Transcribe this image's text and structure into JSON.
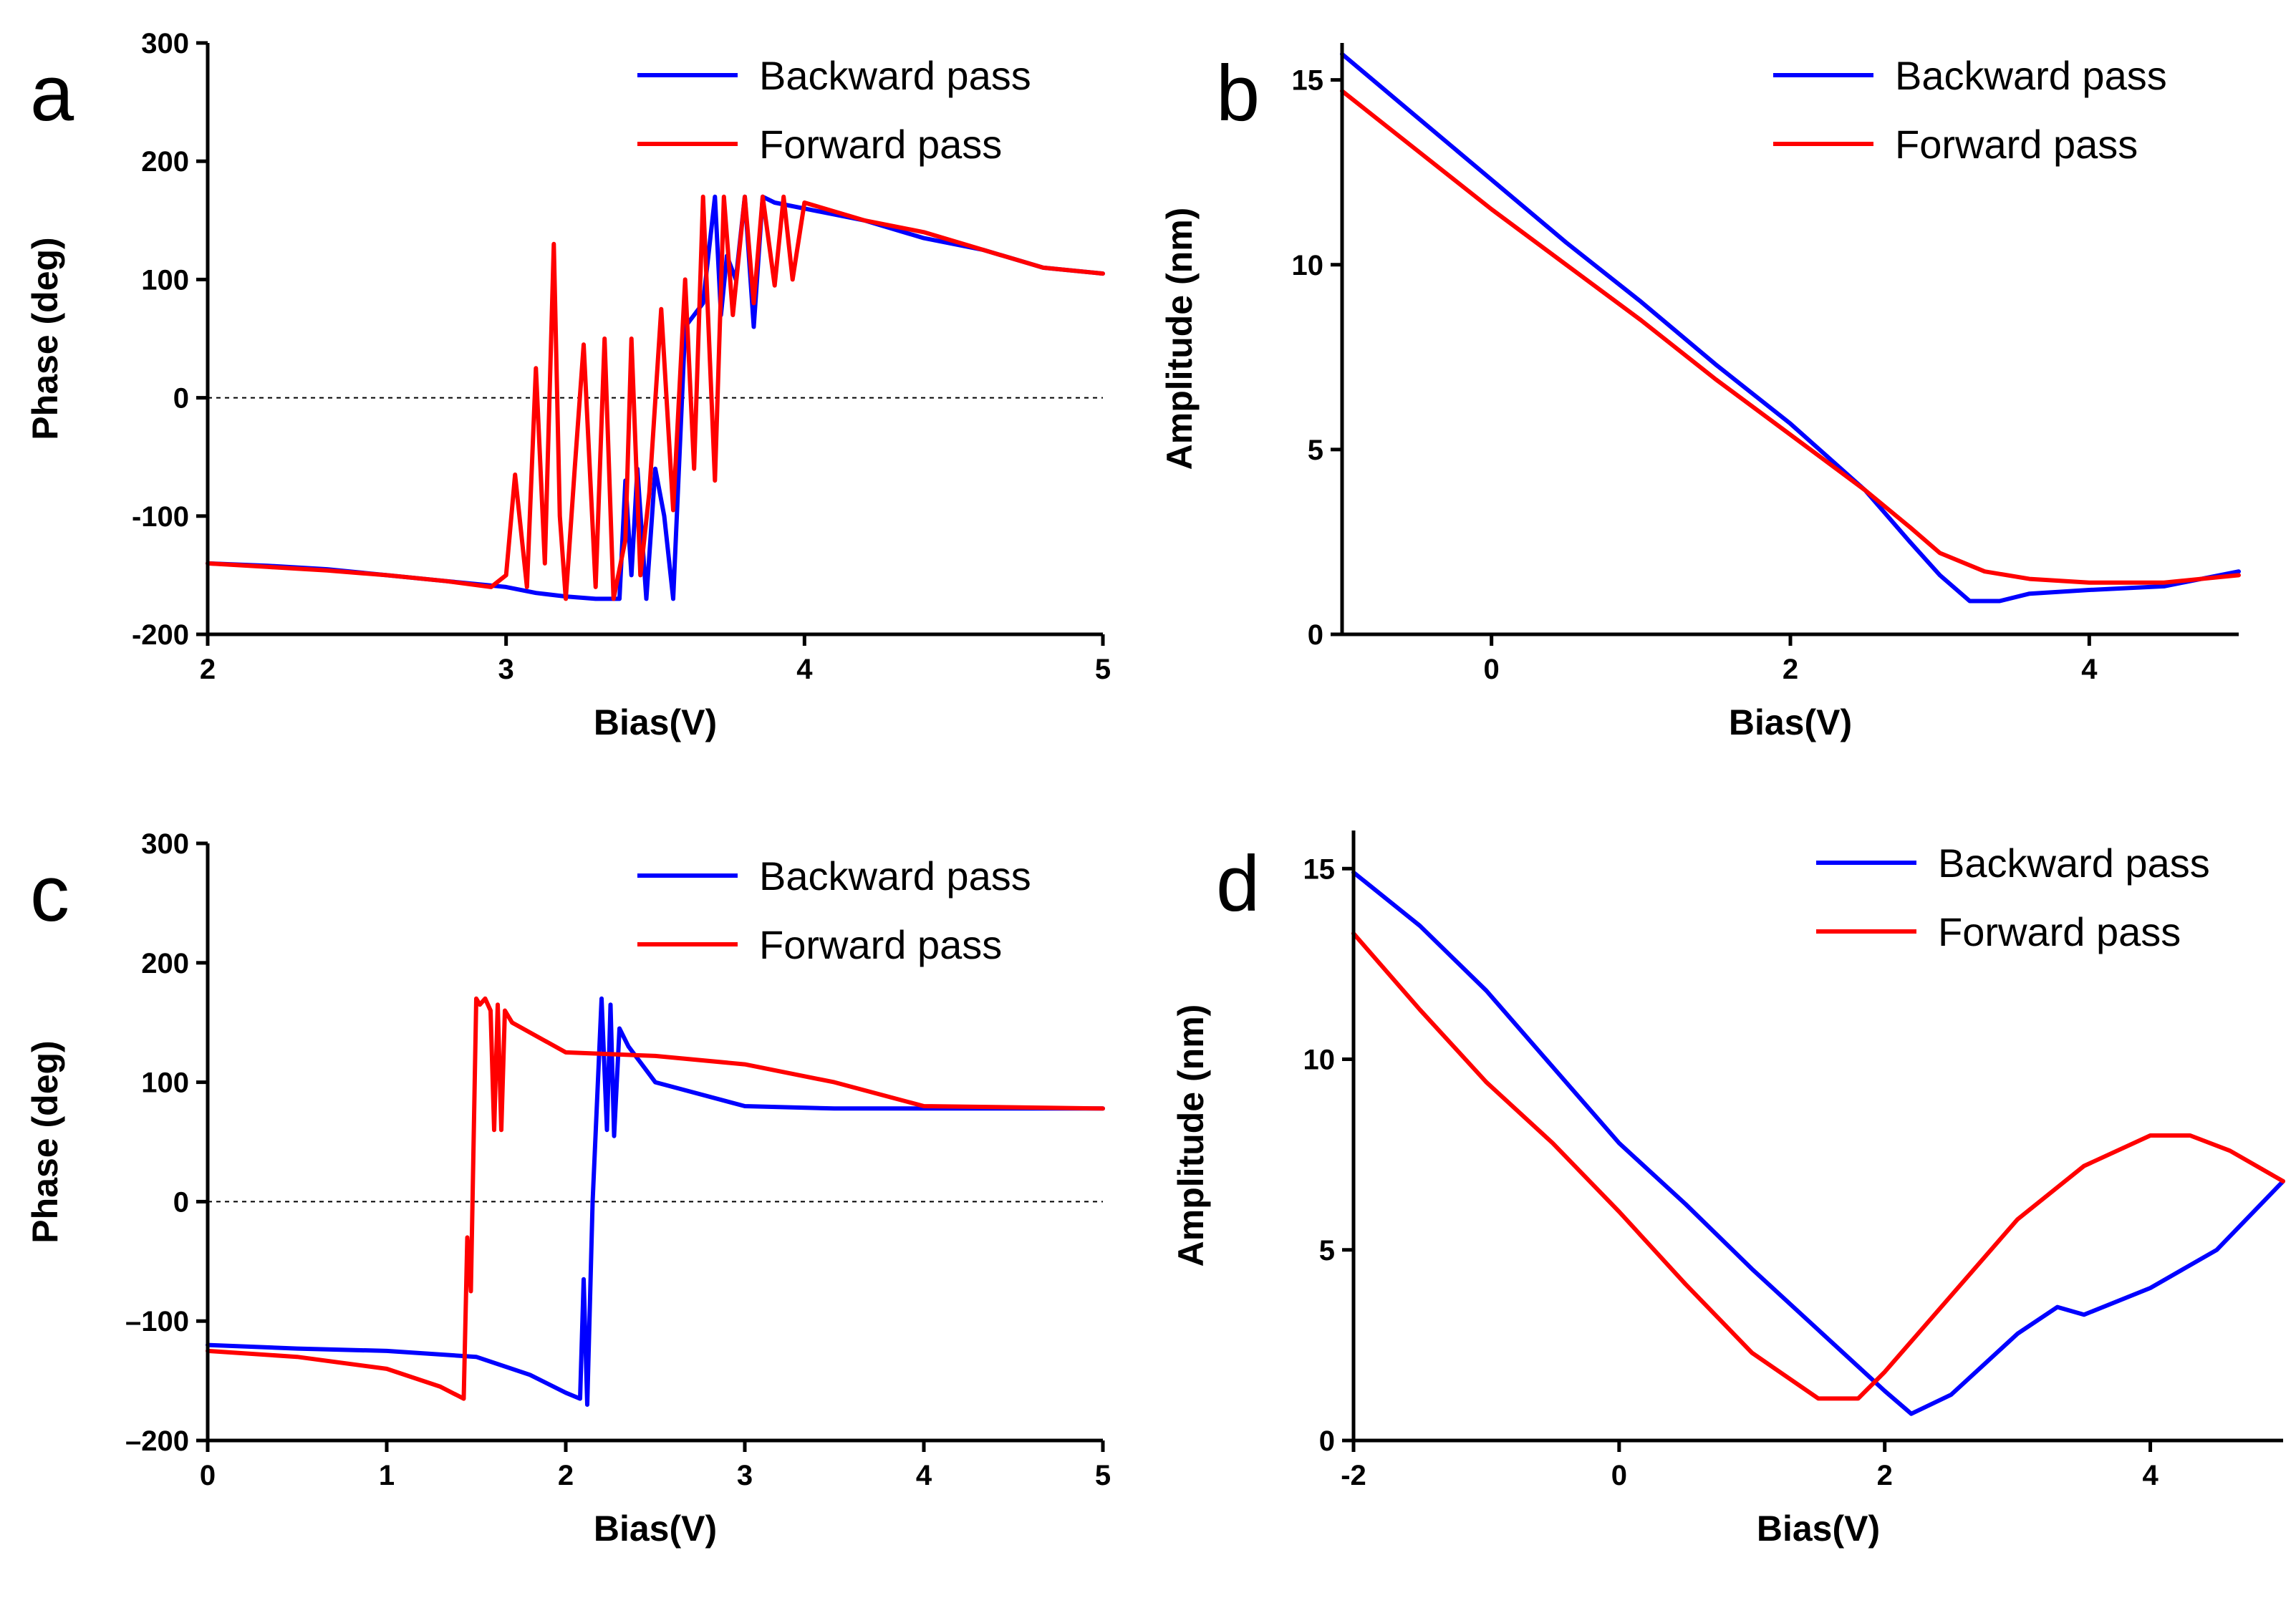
{
  "chart_data": [
    {
      "panel": "a",
      "type": "line",
      "xlabel": "Bias(V)",
      "ylabel": "Phase (deg)",
      "xlim": [
        2,
        5
      ],
      "ylim": [
        -200,
        300
      ],
      "xticks": [
        "2",
        "3",
        "4",
        "5"
      ],
      "yticks": [
        "-200",
        "-100",
        "0",
        "100",
        "200",
        "300"
      ],
      "zero_line": true,
      "legend_position": "top-right",
      "series": [
        {
          "name": "Backward pass",
          "color": "#0000ff",
          "x": [
            2.0,
            2.2,
            2.4,
            2.6,
            2.8,
            3.0,
            3.1,
            3.2,
            3.3,
            3.38,
            3.4,
            3.42,
            3.44,
            3.47,
            3.5,
            3.53,
            3.56,
            3.6,
            3.63,
            3.66,
            3.7,
            3.72,
            3.74,
            3.77,
            3.8,
            3.83,
            3.86,
            3.9,
            4.0,
            4.2,
            4.4,
            4.6,
            4.8,
            5.0
          ],
          "y": [
            -140,
            -142,
            -145,
            -150,
            -155,
            -160,
            -165,
            -168,
            -170,
            -170,
            -70,
            -150,
            -60,
            -170,
            -60,
            -100,
            -170,
            60,
            70,
            80,
            170,
            70,
            120,
            100,
            170,
            60,
            170,
            165,
            160,
            150,
            135,
            125,
            110,
            105
          ]
        },
        {
          "name": "Forward pass",
          "color": "#ff0000",
          "x": [
            2.0,
            2.2,
            2.4,
            2.6,
            2.8,
            2.95,
            3.0,
            3.03,
            3.07,
            3.1,
            3.13,
            3.16,
            3.18,
            3.2,
            3.23,
            3.26,
            3.3,
            3.33,
            3.36,
            3.4,
            3.42,
            3.45,
            3.48,
            3.52,
            3.56,
            3.6,
            3.63,
            3.66,
            3.7,
            3.73,
            3.76,
            3.8,
            3.83,
            3.86,
            3.9,
            3.93,
            3.96,
            4.0,
            4.2,
            4.4,
            4.6,
            4.8,
            5.0
          ],
          "y": [
            -140,
            -143,
            -146,
            -150,
            -155,
            -160,
            -150,
            -65,
            -160,
            25,
            -140,
            130,
            -100,
            -170,
            -60,
            45,
            -160,
            50,
            -170,
            -120,
            50,
            -150,
            -80,
            75,
            -95,
            100,
            -60,
            170,
            -70,
            170,
            70,
            170,
            80,
            170,
            95,
            170,
            100,
            165,
            150,
            140,
            125,
            110,
            105
          ]
        }
      ]
    },
    {
      "panel": "b",
      "type": "line",
      "xlabel": "Bias(V)",
      "ylabel": "Amplitude (nm)",
      "xlim": [
        -1,
        5
      ],
      "ylim": [
        0,
        16
      ],
      "xticks": [
        "0",
        "2",
        "4"
      ],
      "yticks": [
        "0",
        "5",
        "10",
        "15"
      ],
      "legend_position": "top-right",
      "series": [
        {
          "name": "Backward pass",
          "color": "#0000ff",
          "x": [
            -1.0,
            -0.5,
            0.0,
            0.5,
            1.0,
            1.5,
            2.0,
            2.5,
            2.8,
            3.0,
            3.2,
            3.4,
            3.6,
            4.0,
            4.5,
            5.0
          ],
          "y": [
            15.7,
            14.0,
            12.3,
            10.6,
            9.0,
            7.3,
            5.7,
            3.9,
            2.5,
            1.6,
            0.9,
            0.9,
            1.1,
            1.2,
            1.3,
            1.7
          ]
        },
        {
          "name": "Forward pass",
          "color": "#ff0000",
          "x": [
            -1.0,
            -0.5,
            0.0,
            0.5,
            1.0,
            1.5,
            2.0,
            2.5,
            2.8,
            3.0,
            3.3,
            3.6,
            4.0,
            4.5,
            5.0
          ],
          "y": [
            14.7,
            13.1,
            11.5,
            10.0,
            8.5,
            6.9,
            5.4,
            3.9,
            2.9,
            2.2,
            1.7,
            1.5,
            1.4,
            1.4,
            1.6
          ]
        }
      ]
    },
    {
      "panel": "c",
      "type": "line",
      "xlabel": "Bias(V)",
      "ylabel": "Phase (deg)",
      "xlim": [
        0,
        5
      ],
      "ylim": [
        -200,
        300
      ],
      "xticks": [
        "0",
        "1",
        "2",
        "3",
        "4",
        "5"
      ],
      "yticks": [
        "–200",
        "–100",
        "0",
        "100",
        "200",
        "300"
      ],
      "zero_line": true,
      "legend_position": "top-right",
      "series": [
        {
          "name": "Backward pass",
          "color": "#0000ff",
          "x": [
            0.0,
            0.5,
            1.0,
            1.5,
            1.8,
            2.0,
            2.08,
            2.1,
            2.12,
            2.15,
            2.2,
            2.23,
            2.25,
            2.27,
            2.3,
            2.35,
            2.5,
            3.0,
            3.5,
            4.0,
            4.5,
            5.0
          ],
          "y": [
            -120,
            -123,
            -125,
            -130,
            -145,
            -160,
            -165,
            -65,
            -170,
            0,
            170,
            60,
            165,
            55,
            145,
            130,
            100,
            80,
            78,
            78,
            78,
            78
          ]
        },
        {
          "name": "Forward pass",
          "color": "#ff0000",
          "x": [
            0.0,
            0.5,
            1.0,
            1.3,
            1.43,
            1.45,
            1.47,
            1.5,
            1.52,
            1.55,
            1.58,
            1.6,
            1.62,
            1.64,
            1.66,
            1.7,
            2.0,
            2.5,
            3.0,
            3.5,
            4.0,
            4.5,
            5.0
          ],
          "y": [
            -125,
            -130,
            -140,
            -155,
            -165,
            -30,
            -75,
            170,
            165,
            170,
            160,
            60,
            165,
            60,
            160,
            150,
            125,
            122,
            115,
            100,
            80,
            79,
            78
          ]
        }
      ]
    },
    {
      "panel": "d",
      "type": "line",
      "xlabel": "Bias(V)",
      "ylabel": "Amplitude (nm)",
      "xlim": [
        -2,
        5
      ],
      "ylim": [
        0,
        16
      ],
      "xticks": [
        "-2",
        "0",
        "2",
        "4"
      ],
      "yticks": [
        "0",
        "5",
        "10",
        "15"
      ],
      "legend_position": "top-right",
      "series": [
        {
          "name": "Backward pass",
          "color": "#0000ff",
          "x": [
            -2.0,
            -1.5,
            -1.0,
            -0.5,
            0.0,
            0.5,
            1.0,
            1.5,
            2.0,
            2.2,
            2.5,
            3.0,
            3.3,
            3.5,
            4.0,
            4.5,
            5.0
          ],
          "y": [
            14.9,
            13.5,
            11.8,
            9.8,
            7.8,
            6.2,
            4.5,
            2.9,
            1.3,
            0.7,
            1.2,
            2.8,
            3.5,
            3.3,
            4.0,
            5.0,
            6.8
          ]
        },
        {
          "name": "Forward pass",
          "color": "#ff0000",
          "x": [
            -2.0,
            -1.5,
            -1.0,
            -0.5,
            0.0,
            0.5,
            1.0,
            1.5,
            1.8,
            2.0,
            2.5,
            3.0,
            3.5,
            4.0,
            4.3,
            4.6,
            5.0
          ],
          "y": [
            13.3,
            11.3,
            9.4,
            7.8,
            6.0,
            4.1,
            2.3,
            1.1,
            1.1,
            1.8,
            3.8,
            5.8,
            7.2,
            8.0,
            8.0,
            7.6,
            6.8
          ]
        }
      ]
    }
  ]
}
